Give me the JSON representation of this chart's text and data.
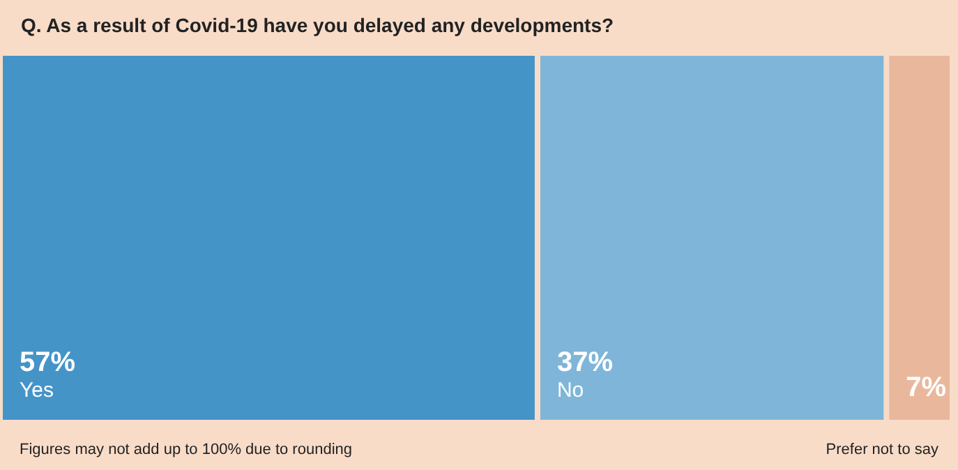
{
  "chart_data": {
    "type": "bar",
    "orientation": "horizontal",
    "stacked": true,
    "title": "Q. As a result of Covid-19 have you delayed any developments?",
    "categories": [
      null
    ],
    "series": [
      {
        "name": "Yes",
        "color": "#4494c8",
        "values": [
          57
        ],
        "value_labels": [
          "57%"
        ]
      },
      {
        "name": "No",
        "color": "#7fb5d8",
        "values": [
          37
        ],
        "value_labels": [
          "37%"
        ]
      },
      {
        "name": "Prefer not to say",
        "color": "#e9b89c",
        "values": [
          7
        ],
        "value_labels": [
          "7%"
        ]
      }
    ],
    "annotations": [
      "Figures may not add up to 100% due to rounding"
    ]
  }
}
